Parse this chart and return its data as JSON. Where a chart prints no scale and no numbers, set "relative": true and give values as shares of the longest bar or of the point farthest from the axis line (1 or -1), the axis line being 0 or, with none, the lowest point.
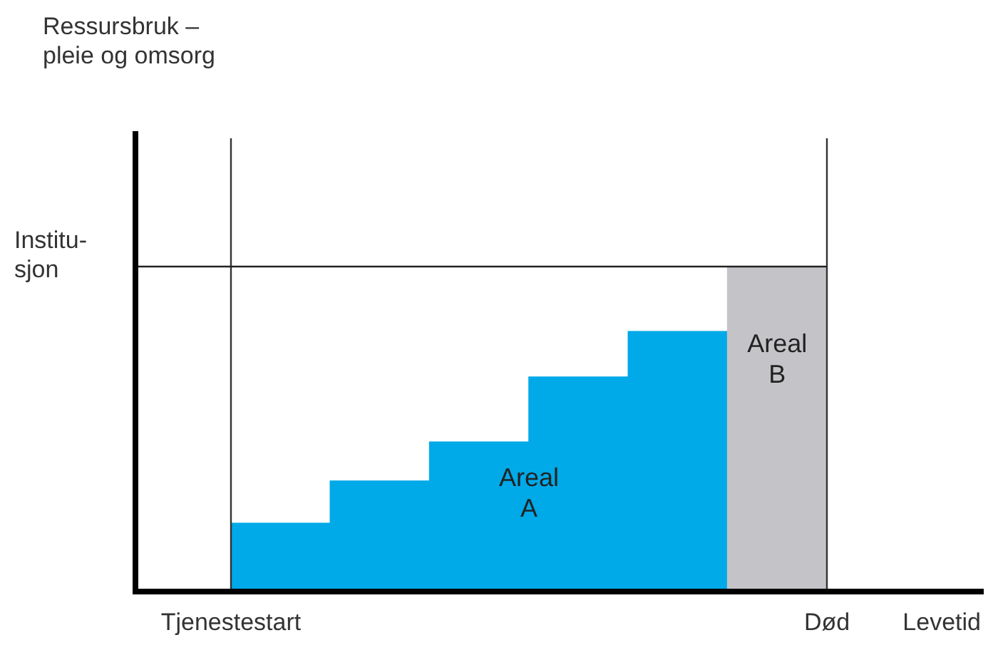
{
  "chart_data": {
    "type": "bar",
    "relative": true,
    "xlabel": "Levetid",
    "categories": [
      null,
      null,
      null,
      null,
      null,
      null
    ],
    "values": [
      0.21,
      0.34,
      0.46,
      0.66,
      0.8,
      1
    ],
    "colors": [
      "#00a9e8",
      "#00a9e8",
      "#00a9e8",
      "#00a9e8",
      "#00a9e8",
      "#c4c4c8"
    ],
    "ref_lines": [
      {
        "axis": "y",
        "value": 1,
        "label": "Institu-\nsjon"
      },
      {
        "axis": "x",
        "label": "Tjenestestart"
      },
      {
        "axis": "x",
        "label": "Død"
      }
    ],
    "annotations": [
      "Ressursbruk –\npleie og omsorg",
      "Areal\nA",
      "Areal\nB"
    ]
  }
}
